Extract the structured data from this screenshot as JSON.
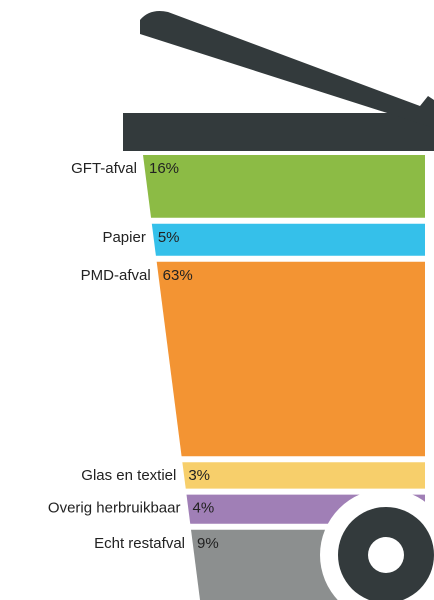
{
  "chart_data": {
    "type": "bar",
    "categories": [
      "GFT-afval",
      "Papier",
      "PMD-afval",
      "Glas en textiel",
      "Overig herbruikbaar",
      "Echt restafval"
    ],
    "values": [
      16,
      5,
      63,
      3,
      4,
      9
    ],
    "value_labels": [
      "16%",
      "5%",
      "63%",
      "3%",
      "4%",
      "9%"
    ],
    "colors": [
      "#8cbb45",
      "#35c0ea",
      "#f39433",
      "#f7cf6b",
      "#a07fb6",
      "#8c8f8f"
    ]
  }
}
